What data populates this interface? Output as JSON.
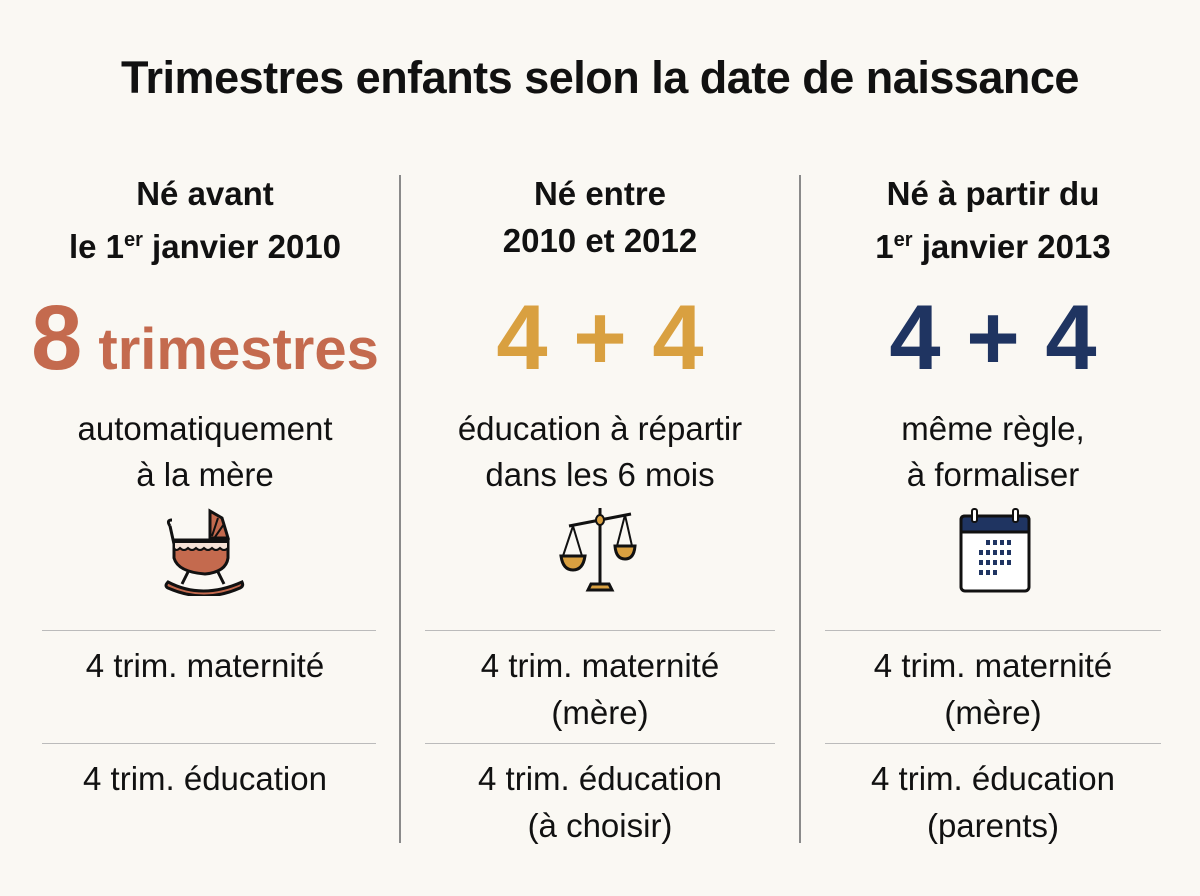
{
  "title": "Trimestres enfants selon la date de naissance",
  "colors": {
    "terracotta": "#c46a4e",
    "gold": "#d9a040",
    "navy": "#1f3461",
    "background": "#faf8f3"
  },
  "columns": [
    {
      "head_line1": "Né avant",
      "head_pre": "le 1",
      "head_sup": "er",
      "head_post": " janvier 2010",
      "big_num": "8",
      "big_text": " trimestres",
      "desc_line1": "automatiquement",
      "desc_line2": "à la mère",
      "icon": "cradle-icon",
      "row1_line1": "4 trim. maternité",
      "row1_line2": "",
      "row2_line1": "4 trim. éducation",
      "row2_line2": ""
    },
    {
      "head_line1": "Né entre",
      "head_pre": "2010 et 2012",
      "head_sup": "",
      "head_post": "",
      "big_num": "4 + 4",
      "big_text": "",
      "desc_line1": "éducation à répartir",
      "desc_line2": "dans les 6 mois",
      "icon": "scales-icon",
      "row1_line1": "4 trim. maternité",
      "row1_line2": "(mère)",
      "row2_line1": "4 trim. éducation",
      "row2_line2": "(à choisir)"
    },
    {
      "head_line1": "Né à partir du",
      "head_pre": "1",
      "head_sup": "er",
      "head_post": " janvier 2013",
      "big_num": "4 + 4",
      "big_text": "",
      "desc_line1": "même règle,",
      "desc_line2": "à formaliser",
      "icon": "calendar-icon",
      "row1_line1": "4 trim. maternité",
      "row1_line2": "(mère)",
      "row2_line1": "4 trim. éducation",
      "row2_line2": "(parents)"
    }
  ]
}
